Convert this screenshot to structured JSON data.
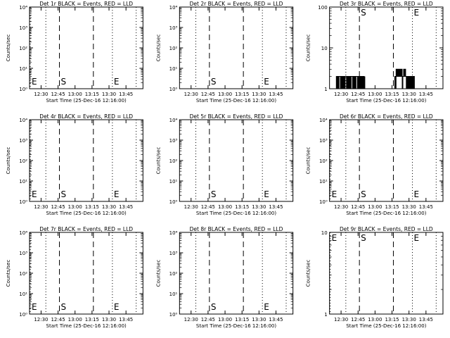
{
  "chart_data": [
    {
      "type": "line",
      "title": "Det 1r BLACK = Events, RED = LLD",
      "xlabel": "Start Time (25-Dec-16 12:16:00)",
      "ylabel": "Counts/sec",
      "yscale": "log",
      "ylim": [
        1,
        10000
      ],
      "y_ticks": [
        {
          "v": 1,
          "label": "10⁰"
        },
        {
          "v": 10,
          "label": "10¹"
        },
        {
          "v": 100,
          "label": "10²"
        },
        {
          "v": 1000,
          "label": "10³"
        },
        {
          "v": 10000,
          "label": "10⁴"
        }
      ],
      "xlim": [
        12.33,
        14
      ],
      "x_ticks": [
        {
          "v": 12.5,
          "label": "12:30"
        },
        {
          "v": 12.75,
          "label": "12:45"
        },
        {
          "v": 13.0,
          "label": "13:00"
        },
        {
          "v": 13.25,
          "label": "13:15"
        },
        {
          "v": 13.5,
          "label": "13:30"
        },
        {
          "v": 13.75,
          "label": "13:45"
        }
      ],
      "markers": [
        {
          "x": 12.33,
          "label": "E",
          "style": "dotted"
        },
        {
          "x": 12.77,
          "label": "S",
          "style": "dashed"
        },
        {
          "x": 13.27,
          "label": "",
          "style": "dashed"
        },
        {
          "x": 13.55,
          "label": "E",
          "style": "dotted"
        },
        {
          "x": 13.9,
          "label": "",
          "style": "dotted"
        },
        {
          "x": 12.57,
          "label": "",
          "style": "dotted"
        }
      ],
      "series": []
    },
    {
      "type": "line",
      "title": "Det 2r BLACK = Events, RED = LLD",
      "xlabel": "Start Time (25-Dec-16 12:16:00)",
      "ylabel": "Counts/sec",
      "yscale": "log",
      "ylim": [
        1,
        10000
      ],
      "y_ticks": [
        {
          "v": 1,
          "label": "10⁰"
        },
        {
          "v": 10,
          "label": "10¹"
        },
        {
          "v": 100,
          "label": "10²"
        },
        {
          "v": 1000,
          "label": "10³"
        },
        {
          "v": 10000,
          "label": "10⁴"
        }
      ],
      "xlim": [
        12.33,
        14
      ],
      "x_ticks": [
        {
          "v": 12.5,
          "label": "12:30"
        },
        {
          "v": 12.75,
          "label": "12:45"
        },
        {
          "v": 13.0,
          "label": "13:00"
        },
        {
          "v": 13.25,
          "label": "13:15"
        },
        {
          "v": 13.5,
          "label": "13:30"
        },
        {
          "v": 13.75,
          "label": "13:45"
        }
      ],
      "markers": [
        {
          "x": 12.57,
          "label": "",
          "style": "dotted"
        },
        {
          "x": 12.77,
          "label": "S",
          "style": "dashed"
        },
        {
          "x": 13.27,
          "label": "",
          "style": "dashed"
        },
        {
          "x": 13.55,
          "label": "E",
          "style": "dotted"
        },
        {
          "x": 13.9,
          "label": "",
          "style": "dotted"
        }
      ],
      "series": []
    },
    {
      "type": "line",
      "title": "Det 3r BLACK = Events, RED = LLD",
      "xlabel": "Start Time (25-Dec-16 12:16:00)",
      "ylabel": "Counts/sec",
      "yscale": "log",
      "ylim": [
        1,
        100
      ],
      "y_ticks": [
        {
          "v": 1,
          "label": "1"
        },
        {
          "v": 10,
          "label": "10"
        },
        {
          "v": 100,
          "label": "100"
        }
      ],
      "xlim": [
        12.33,
        14
      ],
      "x_ticks": [
        {
          "v": 12.5,
          "label": "12:30"
        },
        {
          "v": 12.75,
          "label": "12:45"
        },
        {
          "v": 13.0,
          "label": "13:00"
        },
        {
          "v": 13.25,
          "label": "13:15"
        },
        {
          "v": 13.5,
          "label": "13:30"
        },
        {
          "v": 13.75,
          "label": "13:45"
        }
      ],
      "markers": [
        {
          "x": 12.57,
          "label": "",
          "style": "dotted"
        },
        {
          "x": 12.77,
          "label": "S",
          "style": "dashed"
        },
        {
          "x": 13.27,
          "label": "",
          "style": "dashed"
        },
        {
          "x": 13.55,
          "label": "E",
          "style": "dotted"
        },
        {
          "x": 13.9,
          "label": "",
          "style": "dotted"
        }
      ],
      "series": [
        {
          "name": "",
          "color": "#000000",
          "x": [
            12.42,
            12.43,
            12.44,
            12.45,
            12.46,
            12.47,
            12.48,
            12.49,
            12.5,
            12.51,
            12.52,
            12.53,
            12.54,
            12.55,
            12.56,
            12.57,
            12.58,
            12.59,
            12.6,
            12.61,
            12.62,
            12.63,
            12.64,
            12.65,
            12.66,
            12.67,
            12.68,
            12.69,
            12.7,
            12.71,
            12.72,
            12.73,
            12.74,
            12.75,
            12.76,
            12.77,
            12.78,
            12.79,
            12.8,
            12.81,
            12.82,
            12.83,
            12.84,
            12.85
          ],
          "y": [
            1,
            2,
            1,
            2,
            1,
            2,
            2,
            1,
            2,
            1,
            2,
            1,
            2,
            1,
            2,
            2,
            1,
            2,
            1,
            2,
            1,
            2,
            1,
            2,
            2,
            1,
            2,
            1,
            2,
            1,
            2,
            2,
            1,
            2,
            1,
            2,
            1,
            2,
            1,
            2,
            1,
            2,
            1,
            2
          ]
        },
        {
          "name": "",
          "color": "#000000",
          "x": [
            13.28,
            13.29,
            13.3,
            13.31,
            13.32,
            13.33,
            13.34,
            13.35,
            13.36,
            13.37,
            13.38,
            13.39,
            13.4,
            13.41,
            13.42,
            13.43,
            13.44,
            13.45,
            13.46,
            13.47,
            13.48,
            13.49,
            13.5,
            13.51,
            13.52,
            13.53,
            13.54,
            13.55,
            13.56,
            13.57,
            13.58
          ],
          "y": [
            1,
            2,
            1,
            3,
            2,
            3,
            2,
            3,
            2,
            3,
            2,
            3,
            1,
            2,
            3,
            2,
            3,
            2,
            1,
            2,
            1,
            2,
            1,
            2,
            1,
            2,
            1,
            2,
            1,
            2,
            1
          ]
        }
      ]
    },
    {
      "type": "line",
      "title": "Det 4r BLACK = Events, RED = LLD",
      "xlabel": "Start Time (25-Dec-16 12:16:00)",
      "ylabel": "Counts/sec",
      "yscale": "log",
      "ylim": [
        1,
        10000
      ],
      "y_ticks": [
        {
          "v": 1,
          "label": "10⁰"
        },
        {
          "v": 10,
          "label": "10¹"
        },
        {
          "v": 100,
          "label": "10²"
        },
        {
          "v": 1000,
          "label": "10³"
        },
        {
          "v": 10000,
          "label": "10⁴"
        }
      ],
      "xlim": [
        12.33,
        14
      ],
      "x_ticks": [
        {
          "v": 12.5,
          "label": "12:30"
        },
        {
          "v": 12.75,
          "label": "12:45"
        },
        {
          "v": 13.0,
          "label": "13:00"
        },
        {
          "v": 13.25,
          "label": "13:15"
        },
        {
          "v": 13.5,
          "label": "13:30"
        },
        {
          "v": 13.75,
          "label": "13:45"
        }
      ],
      "markers": [
        {
          "x": 12.33,
          "label": "E",
          "style": "dotted"
        },
        {
          "x": 12.57,
          "label": "",
          "style": "dotted"
        },
        {
          "x": 12.77,
          "label": "S",
          "style": "dashed"
        },
        {
          "x": 13.27,
          "label": "",
          "style": "dashed"
        },
        {
          "x": 13.55,
          "label": "E",
          "style": "dotted"
        },
        {
          "x": 13.9,
          "label": "",
          "style": "dotted"
        }
      ],
      "series": []
    },
    {
      "type": "line",
      "title": "Det 5r BLACK = Events, RED = LLD",
      "xlabel": "Start Time (25-Dec-16 12:16:00)",
      "ylabel": "Counts/sec",
      "yscale": "log",
      "ylim": [
        1,
        10000
      ],
      "y_ticks": [
        {
          "v": 1,
          "label": "10⁰"
        },
        {
          "v": 10,
          "label": "10¹"
        },
        {
          "v": 100,
          "label": "10²"
        },
        {
          "v": 1000,
          "label": "10³"
        },
        {
          "v": 10000,
          "label": "10⁴"
        }
      ],
      "xlim": [
        12.33,
        14
      ],
      "x_ticks": [
        {
          "v": 12.5,
          "label": "12:30"
        },
        {
          "v": 12.75,
          "label": "12:45"
        },
        {
          "v": 13.0,
          "label": "13:00"
        },
        {
          "v": 13.25,
          "label": "13:15"
        },
        {
          "v": 13.5,
          "label": "13:30"
        },
        {
          "v": 13.75,
          "label": "13:45"
        }
      ],
      "markers": [
        {
          "x": 12.57,
          "label": "",
          "style": "dotted"
        },
        {
          "x": 12.77,
          "label": "S",
          "style": "dashed"
        },
        {
          "x": 13.27,
          "label": "",
          "style": "dashed"
        },
        {
          "x": 13.55,
          "label": "E",
          "style": "dotted"
        },
        {
          "x": 13.9,
          "label": "",
          "style": "dotted"
        }
      ],
      "series": []
    },
    {
      "type": "line",
      "title": "Det 6r BLACK = Events, RED = LLD",
      "xlabel": "Start Time (25-Dec-16 12:16:00)",
      "ylabel": "Counts/sec",
      "yscale": "log",
      "ylim": [
        1,
        10000
      ],
      "y_ticks": [
        {
          "v": 1,
          "label": "10⁰"
        },
        {
          "v": 10,
          "label": "10¹"
        },
        {
          "v": 100,
          "label": "10²"
        },
        {
          "v": 1000,
          "label": "10³"
        },
        {
          "v": 10000,
          "label": "10⁴"
        }
      ],
      "xlim": [
        12.33,
        14
      ],
      "x_ticks": [
        {
          "v": 12.5,
          "label": "12:30"
        },
        {
          "v": 12.75,
          "label": "12:45"
        },
        {
          "v": 13.0,
          "label": "13:00"
        },
        {
          "v": 13.25,
          "label": "13:15"
        },
        {
          "v": 13.5,
          "label": "13:30"
        },
        {
          "v": 13.75,
          "label": "13:45"
        }
      ],
      "markers": [
        {
          "x": 12.33,
          "label": "E",
          "style": "dotted"
        },
        {
          "x": 12.57,
          "label": "",
          "style": "dotted"
        },
        {
          "x": 12.77,
          "label": "S",
          "style": "dashed"
        },
        {
          "x": 13.27,
          "label": "",
          "style": "dashed"
        },
        {
          "x": 13.55,
          "label": "E",
          "style": "dotted"
        },
        {
          "x": 13.9,
          "label": "",
          "style": "dotted"
        }
      ],
      "series": []
    },
    {
      "type": "line",
      "title": "Det 7r BLACK = Events, RED = LLD",
      "xlabel": "Start Time (25-Dec-16 12:16:00)",
      "ylabel": "Counts/sec",
      "yscale": "log",
      "ylim": [
        1,
        10000
      ],
      "y_ticks": [
        {
          "v": 1,
          "label": "10⁰"
        },
        {
          "v": 10,
          "label": "10¹"
        },
        {
          "v": 100,
          "label": "10²"
        },
        {
          "v": 1000,
          "label": "10³"
        },
        {
          "v": 10000,
          "label": "10⁴"
        }
      ],
      "xlim": [
        12.33,
        14
      ],
      "x_ticks": [
        {
          "v": 12.5,
          "label": "12:30"
        },
        {
          "v": 12.75,
          "label": "12:45"
        },
        {
          "v": 13.0,
          "label": "13:00"
        },
        {
          "v": 13.25,
          "label": "13:15"
        },
        {
          "v": 13.5,
          "label": "13:30"
        },
        {
          "v": 13.75,
          "label": "13:45"
        }
      ],
      "markers": [
        {
          "x": 12.33,
          "label": "E",
          "style": "dotted"
        },
        {
          "x": 12.57,
          "label": "",
          "style": "dotted"
        },
        {
          "x": 12.77,
          "label": "S",
          "style": "dashed"
        },
        {
          "x": 13.27,
          "label": "",
          "style": "dashed"
        },
        {
          "x": 13.55,
          "label": "E",
          "style": "dotted"
        },
        {
          "x": 13.9,
          "label": "",
          "style": "dotted"
        }
      ],
      "series": []
    },
    {
      "type": "line",
      "title": "Det 8r BLACK = Events, RED = LLD",
      "xlabel": "Start Time (25-Dec-16 12:16:00)",
      "ylabel": "Counts/sec",
      "yscale": "log",
      "ylim": [
        1,
        10000
      ],
      "y_ticks": [
        {
          "v": 1,
          "label": "10⁰"
        },
        {
          "v": 10,
          "label": "10¹"
        },
        {
          "v": 100,
          "label": "10²"
        },
        {
          "v": 1000,
          "label": "10³"
        },
        {
          "v": 10000,
          "label": "10⁴"
        }
      ],
      "xlim": [
        12.33,
        14
      ],
      "x_ticks": [
        {
          "v": 12.5,
          "label": "12:30"
        },
        {
          "v": 12.75,
          "label": "12:45"
        },
        {
          "v": 13.0,
          "label": "13:00"
        },
        {
          "v": 13.25,
          "label": "13:15"
        },
        {
          "v": 13.5,
          "label": "13:30"
        },
        {
          "v": 13.75,
          "label": "13:45"
        }
      ],
      "markers": [
        {
          "x": 12.57,
          "label": "",
          "style": "dotted"
        },
        {
          "x": 12.77,
          "label": "S",
          "style": "dashed"
        },
        {
          "x": 13.27,
          "label": "",
          "style": "dashed"
        },
        {
          "x": 13.55,
          "label": "E",
          "style": "dotted"
        },
        {
          "x": 13.9,
          "label": "",
          "style": "dotted"
        }
      ],
      "series": []
    },
    {
      "type": "line",
      "title": "Det 9r BLACK = Events, RED = LLD",
      "xlabel": "Start Time (25-Dec-16 12:16:00)",
      "ylabel": "Counts/sec",
      "yscale": "log",
      "ylim": [
        1,
        10
      ],
      "y_ticks": [
        {
          "v": 1,
          "label": "1"
        },
        {
          "v": 10,
          "label": "10"
        }
      ],
      "xlim": [
        12.33,
        14
      ],
      "x_ticks": [
        {
          "v": 12.5,
          "label": "12:30"
        },
        {
          "v": 12.75,
          "label": "12:45"
        },
        {
          "v": 13.0,
          "label": "13:00"
        },
        {
          "v": 13.25,
          "label": "13:15"
        },
        {
          "v": 13.5,
          "label": "13:30"
        },
        {
          "v": 13.75,
          "label": "13:45"
        }
      ],
      "markers": [
        {
          "x": 12.33,
          "label": "E",
          "style": "dotted"
        },
        {
          "x": 12.57,
          "label": "",
          "style": "dotted"
        },
        {
          "x": 12.77,
          "label": "S",
          "style": "dashed"
        },
        {
          "x": 13.27,
          "label": "",
          "style": "dashed"
        },
        {
          "x": 13.55,
          "label": "E",
          "style": "dotted"
        },
        {
          "x": 13.9,
          "label": "",
          "style": "dotted"
        }
      ],
      "series": []
    }
  ]
}
